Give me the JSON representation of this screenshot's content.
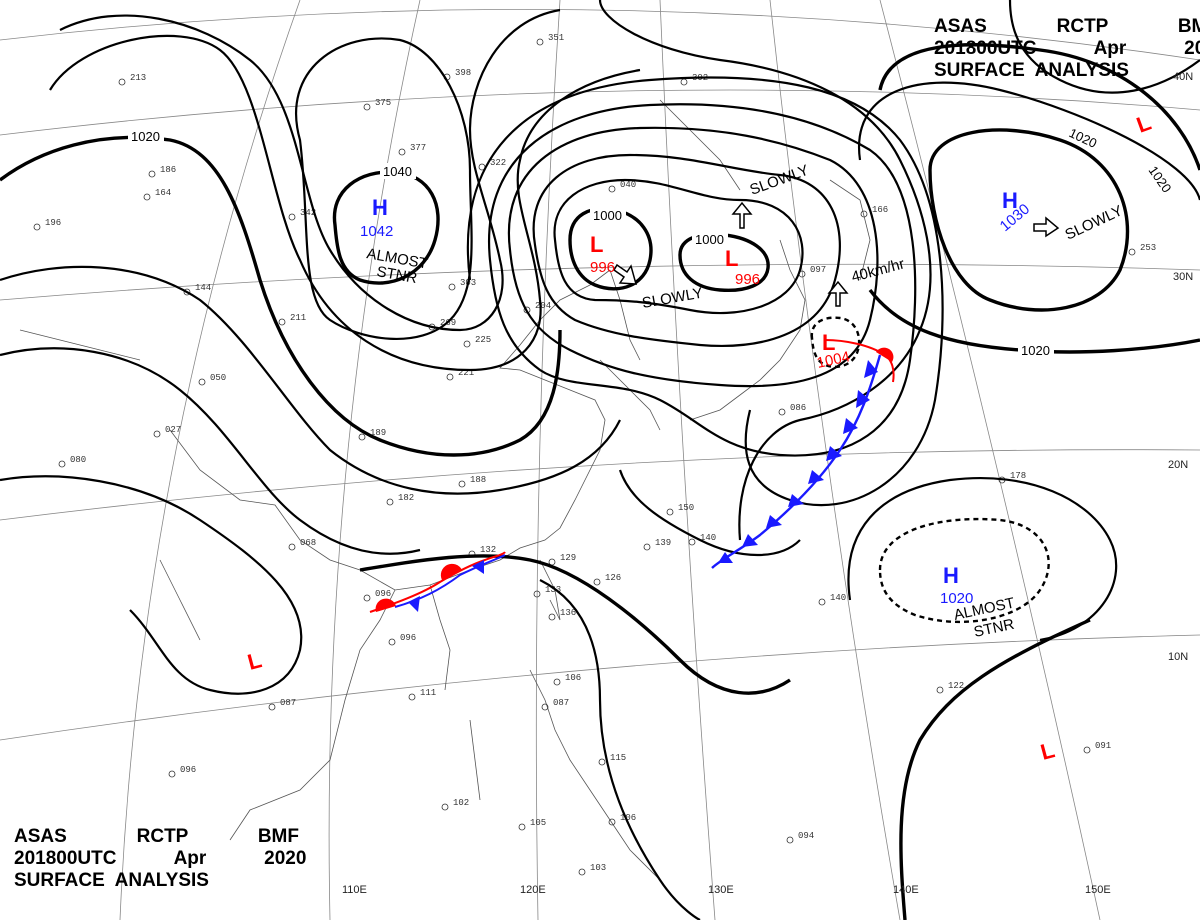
{
  "header": {
    "line1": "ASAS   RCTP   BMF",
    "line2": "201800UTC   Apr   2020",
    "line3": "SURFACE  ANALYSIS"
  },
  "grid_labels": {
    "lat": [
      "40N",
      "30N",
      "20N",
      "10N"
    ],
    "lon": [
      "110E",
      "120E",
      "130E",
      "140E",
      "150E"
    ]
  },
  "isobar_labels": {
    "west_1020": "1020",
    "center_1040": "1040",
    "low_1000_west": "1000",
    "low_1000_east": "1000",
    "ne_1020_top": "1020",
    "ne_1020_right": "1020",
    "ne_1020_bottom": "1020"
  },
  "centers": [
    {
      "type": "H",
      "value": "1042",
      "color": "#1a1aff"
    },
    {
      "type": "L",
      "value": "996",
      "color": "#ff0000"
    },
    {
      "type": "L",
      "value": "996",
      "color": "#ff0000"
    },
    {
      "type": "L",
      "value": "1004",
      "color": "#ff0000"
    },
    {
      "type": "H",
      "value": "1030",
      "color": "#1a1aff"
    },
    {
      "type": "H",
      "value": "1020",
      "color": "#1a1aff"
    },
    {
      "type": "L",
      "value": "",
      "color": "#ff0000"
    },
    {
      "type": "L",
      "value": "",
      "color": "#ff0000"
    },
    {
      "type": "L",
      "value": "",
      "color": "#ff0000"
    }
  ],
  "annotations": {
    "almost_stnr_1": "ALMOST",
    "stnr_1": "STNR",
    "slowly_1": "SLOWLY",
    "slowly_2": "SLOWLY",
    "slowly_3": "SLOWLY",
    "speed": "40km/hr",
    "almost_stnr_2": "ALMOST",
    "stnr_2": "STNR"
  },
  "colors": {
    "high": "#1a1aff",
    "low": "#ff0000",
    "cold_front": "#1a1aff",
    "warm_front": "#ff0000"
  },
  "stations": [
    {
      "t": "351"
    },
    {
      "t": "398"
    },
    {
      "t": "375"
    },
    {
      "t": "213"
    },
    {
      "t": "186"
    },
    {
      "t": "164"
    },
    {
      "t": "196"
    },
    {
      "t": "377"
    },
    {
      "t": "322"
    },
    {
      "t": "342"
    },
    {
      "t": "303"
    },
    {
      "t": "269"
    },
    {
      "t": "225"
    },
    {
      "t": "221"
    },
    {
      "t": "204"
    },
    {
      "t": "144"
    },
    {
      "t": "211"
    },
    {
      "t": "050"
    },
    {
      "t": "027"
    },
    {
      "t": "080"
    },
    {
      "t": "189"
    },
    {
      "t": "182"
    },
    {
      "t": "188"
    },
    {
      "t": "068"
    },
    {
      "t": "096"
    },
    {
      "t": "096"
    },
    {
      "t": "132"
    },
    {
      "t": "129"
    },
    {
      "t": "126"
    },
    {
      "t": "133"
    },
    {
      "t": "136"
    },
    {
      "t": "139"
    },
    {
      "t": "140"
    },
    {
      "t": "150"
    },
    {
      "t": "106"
    },
    {
      "t": "087"
    },
    {
      "t": "115"
    },
    {
      "t": "102"
    },
    {
      "t": "105"
    },
    {
      "t": "106"
    },
    {
      "t": "103"
    },
    {
      "t": "094"
    },
    {
      "t": "087"
    },
    {
      "t": "111"
    },
    {
      "t": "096"
    },
    {
      "t": "122"
    },
    {
      "t": "091"
    },
    {
      "t": "140"
    },
    {
      "t": "178"
    },
    {
      "t": "086"
    },
    {
      "t": "097"
    },
    {
      "t": "040"
    },
    {
      "t": "302"
    },
    {
      "t": "166"
    },
    {
      "t": "253"
    }
  ]
}
